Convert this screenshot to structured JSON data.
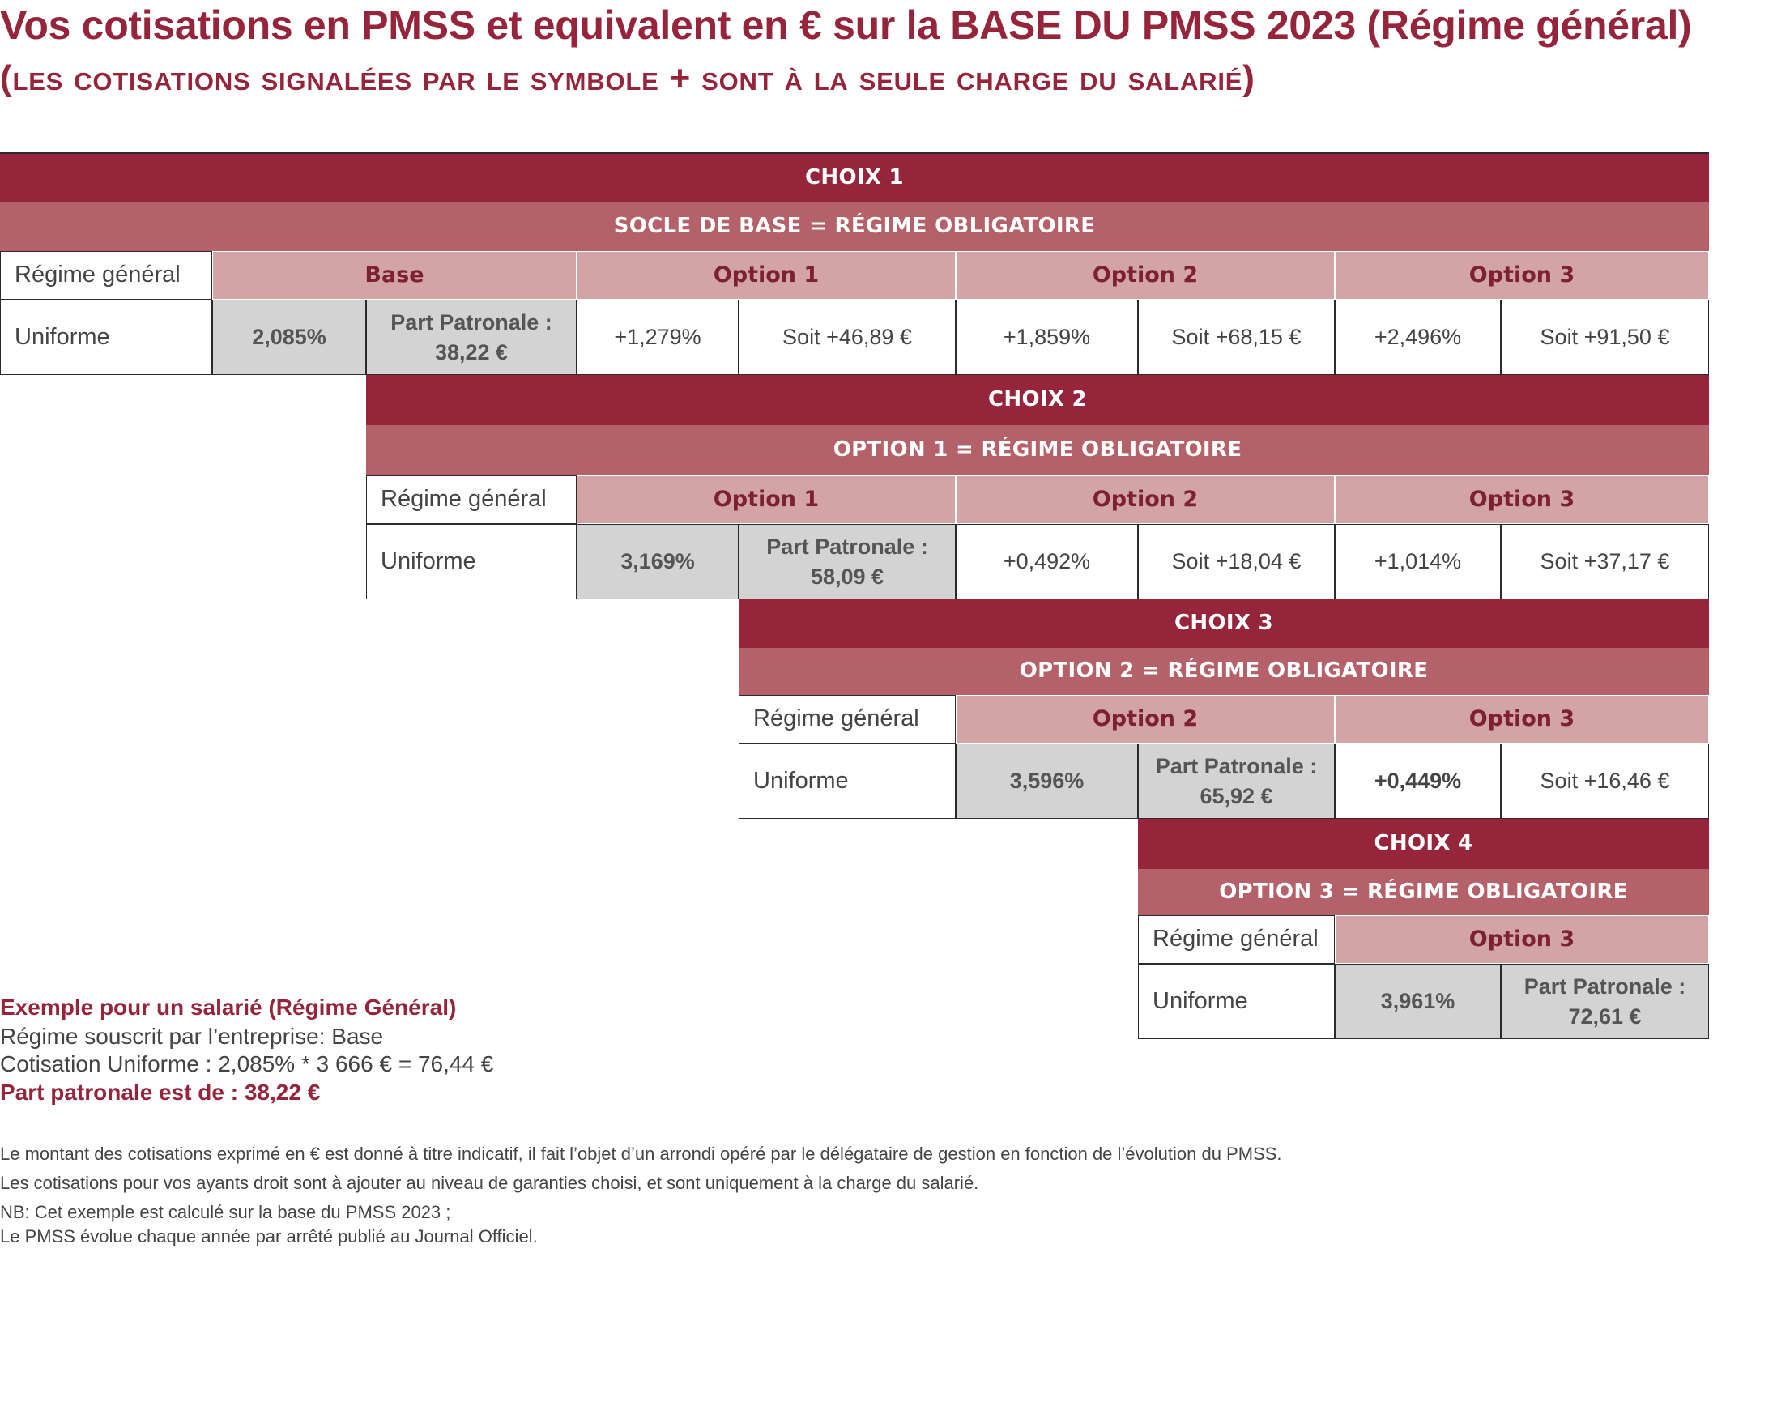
{
  "header": {
    "title": "Vos cotisations en PMSS et equivalent en € sur la BASE DU PMSS 2023 (Régime général)",
    "subtitle": "(les cotisations signalées par le symbole + sont à la seule charge du salarié)"
  },
  "choix1": {
    "title": "CHOIX 1",
    "subtitle": "SOCLE DE BASE = RÉGIME OBLIGATOIRE",
    "regime_label": "Régime général",
    "headers": [
      "Base",
      "Option 1",
      "Option 2",
      "Option 3"
    ],
    "row_label": "Uniforme",
    "base_rate": "2,085%",
    "part_patronale_label": "Part Patronale :",
    "part_patronale_value": "38,22 €",
    "options": [
      {
        "rate": "+1,279%",
        "amount": "Soit +46,89 €"
      },
      {
        "rate": "+1,859%",
        "amount": "Soit +68,15 €"
      },
      {
        "rate": "+2,496%",
        "amount": "Soit +91,50 €"
      }
    ]
  },
  "choix2": {
    "title": "CHOIX 2",
    "subtitle": "OPTION 1 = RÉGIME OBLIGATOIRE",
    "regime_label": "Régime général",
    "headers": [
      "Option 1",
      "Option 2",
      "Option 3"
    ],
    "row_label": "Uniforme",
    "base_rate": "3,169%",
    "part_patronale_label": "Part Patronale :",
    "part_patronale_value": "58,09 €",
    "options": [
      {
        "rate": "+0,492%",
        "amount": "Soit +18,04 €"
      },
      {
        "rate": "+1,014%",
        "amount": "Soit +37,17 €"
      }
    ]
  },
  "choix3": {
    "title": "CHOIX 3",
    "subtitle": "OPTION 2 = RÉGIME OBLIGATOIRE",
    "regime_label": "Régime général",
    "headers": [
      "Option 2",
      "Option 3"
    ],
    "row_label": "Uniforme",
    "base_rate": "3,596%",
    "part_patronale_label": "Part Patronale :",
    "part_patronale_value": "65,92 €",
    "options": [
      {
        "rate": "+0,449%",
        "amount": "Soit +16,46 €"
      }
    ]
  },
  "choix4": {
    "title": "CHOIX 4",
    "subtitle": "OPTION 3 = RÉGIME OBLIGATOIRE",
    "regime_label": "Régime général",
    "headers": [
      "Option 3"
    ],
    "row_label": "Uniforme",
    "base_rate": "3,961%",
    "part_patronale_label": "Part Patronale :",
    "part_patronale_value": "72,61 €"
  },
  "example": {
    "title": "Exemple pour un salarié (Régime Général)",
    "line1": "Régime souscrit par l’entreprise: Base",
    "line2": "Cotisation Uniforme : 2,085% * 3 666 € = 76,44 €",
    "line3": "Part patronale est de : 38,22 €"
  },
  "notes": [
    "Le montant des cotisations exprimé en € est donné à titre indicatif, il fait l’objet d’un arrondi opéré par le délégataire de gestion en fonction de l’évolution du PMSS.",
    "Les cotisations pour vos ayants droit sont à ajouter au niveau de garanties choisi, et sont uniquement à la charge du salarié.",
    "NB: Cet exemple est calculé sur la base du PMSS 2023 ;",
    "Le PMSS évolue chaque année par arrêté publié au Journal Officiel."
  ],
  "colors": {
    "band_dark": "#96253c",
    "band_mid": "#b5616a",
    "header_pink": "#d3a4a6",
    "cell_grey": "#d3d3d3"
  }
}
